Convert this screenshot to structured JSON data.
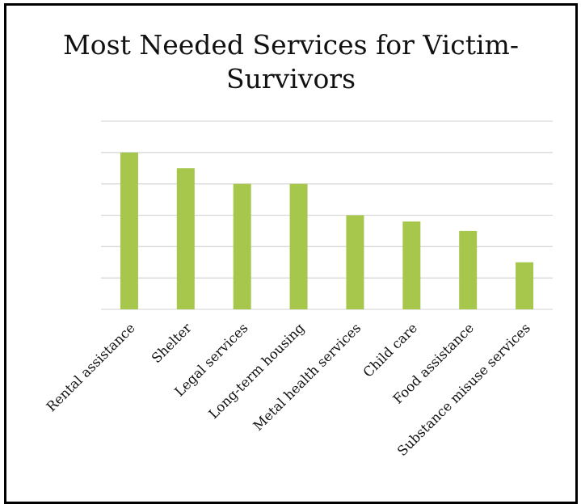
{
  "chart_data": {
    "type": "bar",
    "title": "Most Needed Services for Victim-Survivors",
    "xlabel": "",
    "ylabel": "",
    "categories": [
      "Rental assistance",
      "Shelter",
      "Legal services",
      "Long-term housing",
      "Metal health services",
      "Child care",
      "Food assistance",
      "Substance misuse services"
    ],
    "values": [
      10,
      9,
      8,
      8,
      6,
      5.6,
      5,
      3
    ],
    "ylim": [
      0,
      12
    ],
    "y_tick_step": 2,
    "y_tick_labels_shown": false,
    "grid": true,
    "legend": "none",
    "bar_color": "#a6c64c",
    "grid_color": "#d9d9d9"
  }
}
